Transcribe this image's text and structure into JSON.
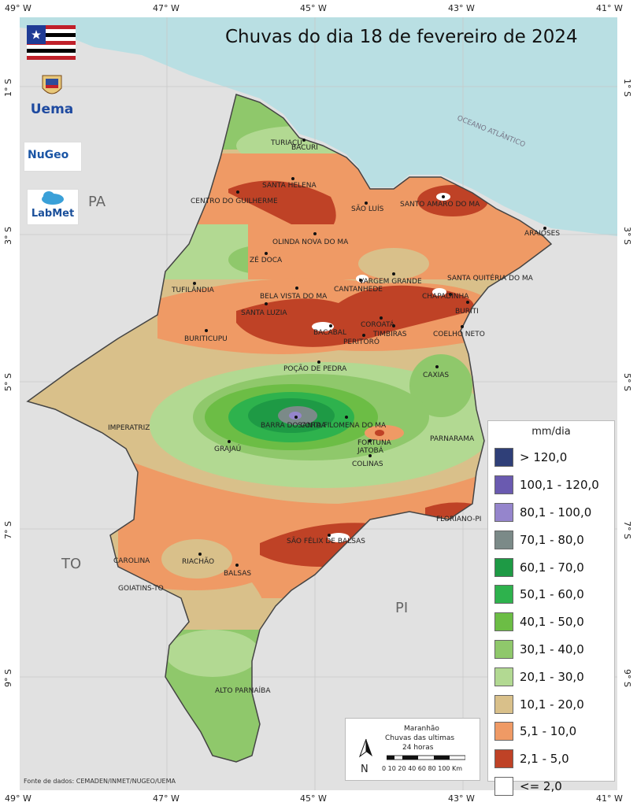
{
  "title": "Chuvas do dia 18 de fevereiro de 2024",
  "longitude_labels": [
    "49° W",
    "47° W",
    "45° W",
    "43° W",
    "41° W"
  ],
  "latitude_labels": [
    "1° S",
    "3° S",
    "5° S",
    "7° S",
    "9° S"
  ],
  "state_labels": [
    "PA",
    "TO",
    "PI"
  ],
  "ocean_label": "OCEANO ATLÂNTICO",
  "cities": [
    "TURIAÇU",
    "BACURI",
    "SANTA HELENA",
    "CENTRO DO GUILHERME",
    "SÃO LUÍS",
    "SANTO AMARO DO MA",
    "OLINDA NOVA DO MA",
    "ARAIOSES",
    "ZÉ DOCA",
    "VARGEM GRANDE",
    "SANTA QUITÉRIA DO MA",
    "TUFILÂNDIA",
    "CANTANHEDE",
    "CHAPADINHA",
    "BELA VISTA DO MA",
    "SANTA LUZIA",
    "COROATÁ",
    "BURITI",
    "BURITICUPU",
    "BACABAL",
    "TIMBIRAS",
    "PERITORÓ",
    "COELHO NETO",
    "POÇÃO DE PEDRA",
    "CAXIAS",
    "BARRA DO CORDA",
    "SANTA FILOMENA DO MA",
    "IMPERATRIZ",
    "FORTUNA",
    "JATOBÁ",
    "PARNARAMA",
    "GRAJAÚ",
    "COLINAS",
    "FLORIANO-PI",
    "SÃO FÉLIX DE BALSAS",
    "CAROLINA",
    "RIACHÃO",
    "BALSAS",
    "GOIATINS-TO",
    "ALTO PARNAÍBA"
  ],
  "legend": {
    "title": "mm/dia",
    "items": [
      {
        "label": "> 120,0",
        "color": "#2f3f78"
      },
      {
        "label": "100,1 - 120,0",
        "color": "#6a5ab0"
      },
      {
        "label": "80,1 - 100,0",
        "color": "#9585cc"
      },
      {
        "label": "70,1 - 80,0",
        "color": "#7b8a88"
      },
      {
        "label": "60,1 - 70,0",
        "color": "#1e9a45"
      },
      {
        "label": "50,1 - 60,0",
        "color": "#2eb24d"
      },
      {
        "label": "40,1 - 50,0",
        "color": "#6cbd45"
      },
      {
        "label": "30,1 - 40,0",
        "color": "#8fc86b"
      },
      {
        "label": "20,1 - 30,0",
        "color": "#b2d992"
      },
      {
        "label": "10,1 - 20,0",
        "color": "#d9c08a"
      },
      {
        "label": "5,1 - 10,0",
        "color": "#ef9a65"
      },
      {
        "label": "2,1 - 5,0",
        "color": "#bf4226"
      },
      {
        "label": "<= 2,0",
        "color": "#ffffff"
      }
    ]
  },
  "scale": {
    "line1": "Maranhão",
    "line2": "Chuvas das ultimas",
    "line3": "24 horas",
    "north": "N",
    "ticks": "0 10 20 40 60 80 100 Km"
  },
  "logos": {
    "uema": "Uema",
    "nugeo": "NuGeo",
    "labmet": "LabMet"
  },
  "source": "Fonte de dados: CEMADEN/INMET/NUGEO/UEMA"
}
